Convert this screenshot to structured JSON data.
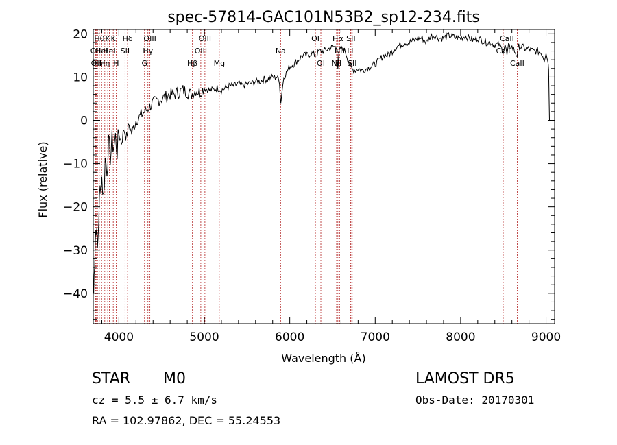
{
  "chart_data": {
    "type": "line",
    "title": "spec-57814-GAC101N53B2_sp12-234.fits",
    "xlabel": "Wavelength (Å)",
    "ylabel": "Flux (relative)",
    "xlim": [
      3700,
      9100
    ],
    "ylim": [
      -47,
      21
    ],
    "xticks": [
      4000,
      5000,
      6000,
      7000,
      8000,
      9000
    ],
    "yticks": [
      -40,
      -30,
      -20,
      -10,
      0,
      10,
      20
    ],
    "grid": false,
    "line_color": "#000000",
    "marker_color": "#b22222",
    "series": [
      {
        "points": [
          [
            3705,
            -40
          ],
          [
            3715,
            -32
          ],
          [
            3725,
            -27
          ],
          [
            3735,
            -24
          ],
          [
            3750,
            -30
          ],
          [
            3765,
            -22
          ],
          [
            3780,
            -16
          ],
          [
            3800,
            -13
          ],
          [
            3820,
            -18
          ],
          [
            3840,
            -9
          ],
          [
            3860,
            -11
          ],
          [
            3880,
            -6
          ],
          [
            3900,
            -8
          ],
          [
            3920,
            -5
          ],
          [
            3940,
            -6
          ],
          [
            3960,
            -4
          ],
          [
            3980,
            -7
          ],
          [
            4000,
            -3
          ],
          [
            4030,
            -5
          ],
          [
            4060,
            -2
          ],
          [
            4090,
            -4
          ],
          [
            4120,
            -1
          ],
          [
            4150,
            -3
          ],
          [
            4200,
            0
          ],
          [
            4250,
            1
          ],
          [
            4300,
            2
          ],
          [
            4350,
            3
          ],
          [
            4400,
            4
          ],
          [
            4450,
            4.5
          ],
          [
            4500,
            5
          ],
          [
            4550,
            5.5
          ],
          [
            4600,
            6
          ],
          [
            4650,
            6
          ],
          [
            4700,
            6.5
          ],
          [
            4750,
            7
          ],
          [
            4800,
            6.5
          ],
          [
            4850,
            6
          ],
          [
            4900,
            7
          ],
          [
            4950,
            6.5
          ],
          [
            5000,
            7.5
          ],
          [
            5050,
            7
          ],
          [
            5100,
            7
          ],
          [
            5150,
            7.5
          ],
          [
            5200,
            7
          ],
          [
            5250,
            7.5
          ],
          [
            5300,
            8
          ],
          [
            5350,
            8
          ],
          [
            5400,
            8.5
          ],
          [
            5450,
            8
          ],
          [
            5500,
            8.5
          ],
          [
            5550,
            8.5
          ],
          [
            5600,
            9
          ],
          [
            5650,
            9
          ],
          [
            5700,
            9.5
          ],
          [
            5750,
            9.5
          ],
          [
            5800,
            10
          ],
          [
            5850,
            10
          ],
          [
            5880,
            9
          ],
          [
            5895,
            4
          ],
          [
            5905,
            6
          ],
          [
            5930,
            10
          ],
          [
            5960,
            11
          ],
          [
            6000,
            12.5
          ],
          [
            6050,
            13
          ],
          [
            6100,
            14
          ],
          [
            6150,
            15
          ],
          [
            6200,
            15
          ],
          [
            6250,
            15.5
          ],
          [
            6300,
            15
          ],
          [
            6350,
            16
          ],
          [
            6400,
            16
          ],
          [
            6450,
            16.5
          ],
          [
            6500,
            17
          ],
          [
            6550,
            17
          ],
          [
            6563,
            12
          ],
          [
            6580,
            16
          ],
          [
            6600,
            16.5
          ],
          [
            6650,
            16
          ],
          [
            6700,
            13
          ],
          [
            6720,
            12
          ],
          [
            6750,
            11.5
          ],
          [
            6800,
            12
          ],
          [
            6850,
            11.5
          ],
          [
            6900,
            12
          ],
          [
            6950,
            12.5
          ],
          [
            7000,
            13
          ],
          [
            7050,
            14
          ],
          [
            7100,
            15
          ],
          [
            7150,
            15
          ],
          [
            7200,
            16
          ],
          [
            7250,
            17
          ],
          [
            7300,
            17.5
          ],
          [
            7350,
            18
          ],
          [
            7400,
            18
          ],
          [
            7450,
            18.5
          ],
          [
            7500,
            19
          ],
          [
            7550,
            19
          ],
          [
            7600,
            18
          ],
          [
            7650,
            19.5
          ],
          [
            7700,
            19.5
          ],
          [
            7750,
            19
          ],
          [
            7800,
            19
          ],
          [
            7850,
            19.5
          ],
          [
            7900,
            19.5
          ],
          [
            7950,
            19
          ],
          [
            8000,
            19
          ],
          [
            8050,
            19.5
          ],
          [
            8100,
            19
          ],
          [
            8150,
            18.5
          ],
          [
            8200,
            19
          ],
          [
            8250,
            18.5
          ],
          [
            8300,
            18
          ],
          [
            8350,
            18
          ],
          [
            8400,
            17.5
          ],
          [
            8450,
            17.5
          ],
          [
            8498,
            16
          ],
          [
            8520,
            17.5
          ],
          [
            8542,
            15
          ],
          [
            8560,
            17
          ],
          [
            8600,
            17
          ],
          [
            8662,
            15
          ],
          [
            8680,
            17
          ],
          [
            8720,
            17
          ],
          [
            8760,
            16.5
          ],
          [
            8800,
            16.5
          ],
          [
            8850,
            16
          ],
          [
            8900,
            16
          ],
          [
            8950,
            15.5
          ],
          [
            8980,
            14
          ],
          [
            9000,
            16
          ],
          [
            9020,
            14
          ],
          [
            9030,
            12
          ],
          [
            9040,
            0
          ]
        ]
      }
    ],
    "line_markers": [
      {
        "wavelength": 3727,
        "label": "OII",
        "row": 1
      },
      {
        "wavelength": 3734,
        "label": "OII",
        "row": 2
      },
      {
        "wavelength": 3750,
        "label": "Hη",
        "row": 2
      },
      {
        "wavelength": 3771,
        "label": "Hθ",
        "row": 0
      },
      {
        "wavelength": 3798,
        "label": "HeI",
        "row": 1
      },
      {
        "wavelength": 3835,
        "label": "Hη",
        "row": 2
      },
      {
        "wavelength": 3869,
        "label": "K",
        "row": 0
      },
      {
        "wavelength": 3889,
        "label": "HeI",
        "row": 1
      },
      {
        "wavelength": 3934,
        "label": "K",
        "row": 0
      },
      {
        "wavelength": 3968,
        "label": "H",
        "row": 2
      },
      {
        "wavelength": 4072,
        "label": "SII",
        "row": 1
      },
      {
        "wavelength": 4102,
        "label": "Hδ",
        "row": 0
      },
      {
        "wavelength": 4300,
        "label": "G",
        "row": 2
      },
      {
        "wavelength": 4340,
        "label": "Hγ",
        "row": 1
      },
      {
        "wavelength": 4363,
        "label": "OIII",
        "row": 0
      },
      {
        "wavelength": 4861,
        "label": "Hβ",
        "row": 2
      },
      {
        "wavelength": 4959,
        "label": "OIII",
        "row": 1
      },
      {
        "wavelength": 5007,
        "label": "OIII",
        "row": 0
      },
      {
        "wavelength": 5175,
        "label": "Mg",
        "row": 2
      },
      {
        "wavelength": 5893,
        "label": "Na",
        "row": 1
      },
      {
        "wavelength": 6300,
        "label": "OI",
        "row": 0
      },
      {
        "wavelength": 6364,
        "label": "OI",
        "row": 2
      },
      {
        "wavelength": 6548,
        "label": "NII",
        "row": 2
      },
      {
        "wavelength": 6563,
        "label": "Hα",
        "row": 0
      },
      {
        "wavelength": 6583,
        "label": "NII",
        "row": 1
      },
      {
        "wavelength": 6708,
        "label": "Li",
        "row": 1
      },
      {
        "wavelength": 6716,
        "label": "SII",
        "row": 0
      },
      {
        "wavelength": 6731,
        "label": "SII",
        "row": 2
      },
      {
        "wavelength": 8498,
        "label": "CaII",
        "row": 1
      },
      {
        "wavelength": 8542,
        "label": "CaII",
        "row": 0
      },
      {
        "wavelength": 8662,
        "label": "CaII",
        "row": 2
      }
    ]
  },
  "info": {
    "object_type": "STAR",
    "subclass": "M0",
    "cz": "cz = 5.5 ± 6.7 km/s",
    "coords": "RA = 102.97862, DEC =  55.24553",
    "survey": "LAMOST  DR5",
    "obs_date": "Obs-Date: 20170301"
  }
}
